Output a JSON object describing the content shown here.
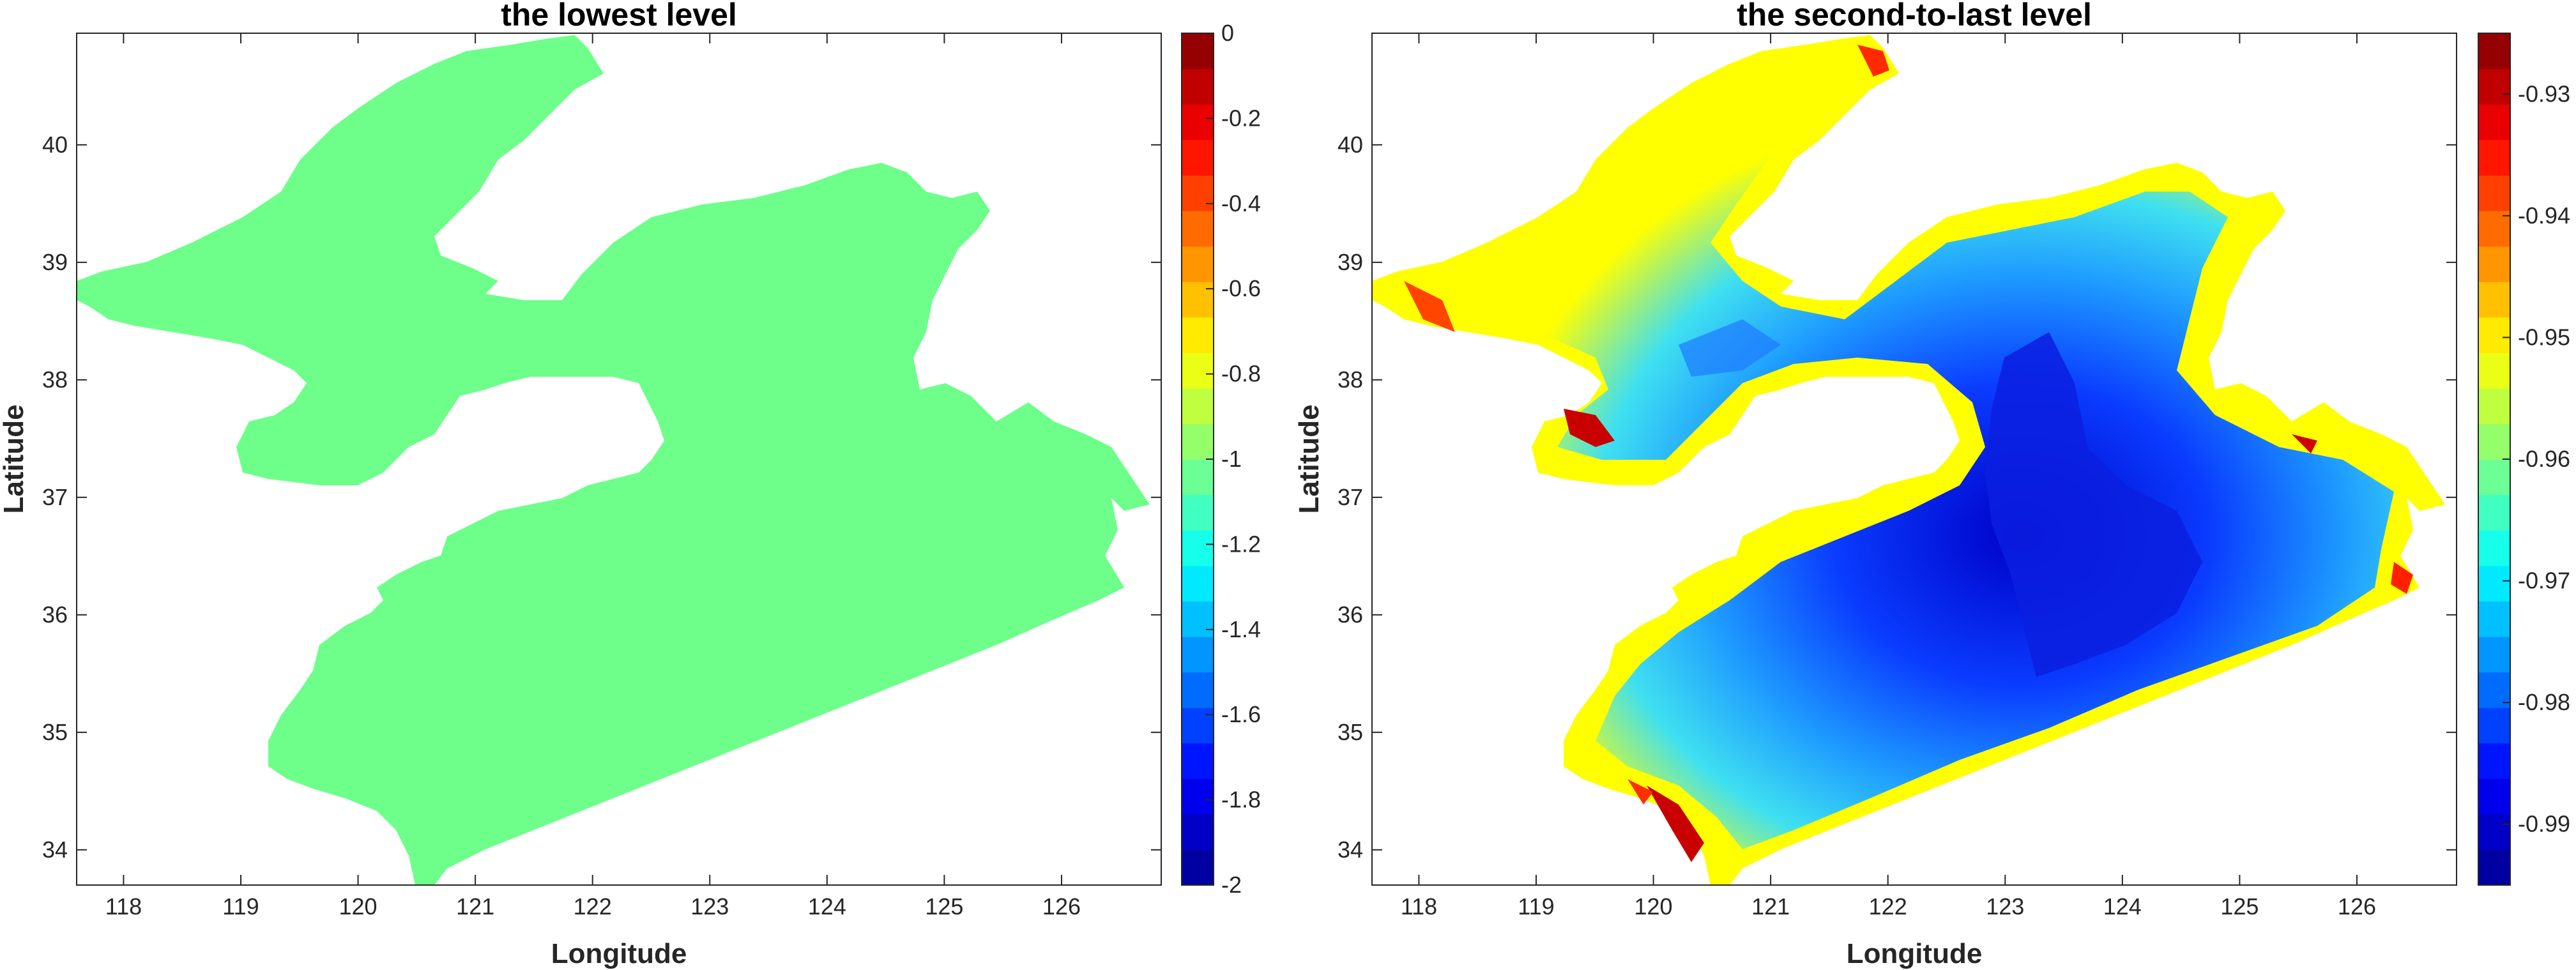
{
  "chart_data": [
    {
      "type": "heatmap",
      "title": "the lowest level",
      "xlabel": "Longitude",
      "ylabel": "Latitude",
      "xlim": [
        117.6,
        126.85
      ],
      "ylim": [
        33.7,
        40.95
      ],
      "xticks": [
        "118",
        "119",
        "120",
        "121",
        "122",
        "123",
        "124",
        "125",
        "126"
      ],
      "yticks": [
        "34",
        "35",
        "36",
        "37",
        "38",
        "39",
        "40"
      ],
      "colorbar": {
        "range": [
          -2,
          0
        ],
        "ticks": [
          "0",
          "-0.2",
          "-0.4",
          "-0.6",
          "-0.8",
          "-1",
          "-1.2",
          "-1.4",
          "-1.6",
          "-1.8",
          "-2"
        ],
        "colormap": "jet"
      },
      "field_value": -1.0,
      "field_color": "#6dff8a",
      "grid": false
    },
    {
      "type": "heatmap",
      "title": "the second-to-last level",
      "xlabel": "Longitude",
      "ylabel": "Latitude",
      "xlim": [
        117.6,
        126.85
      ],
      "ylim": [
        33.7,
        40.95
      ],
      "xticks": [
        "118",
        "119",
        "120",
        "121",
        "122",
        "123",
        "124",
        "125",
        "126"
      ],
      "yticks": [
        "34",
        "35",
        "36",
        "37",
        "38",
        "39",
        "40"
      ],
      "colorbar": {
        "range": [
          -0.995,
          -0.925
        ],
        "ticks": [
          "-0.93",
          "-0.94",
          "-0.95",
          "-0.96",
          "-0.97",
          "-0.98",
          "-0.99"
        ],
        "colormap": "jet"
      },
      "field_pattern": "yellow/red near coastline (about -0.95 to -0.93), decreasing to dark blue (about -0.99) in the deep central basin",
      "grid": false
    }
  ],
  "colors": {
    "jet_stops": [
      "#00008f",
      "#0000ff",
      "#0080ff",
      "#00ffff",
      "#80ff80",
      "#ffff00",
      "#ff8000",
      "#ff0000",
      "#800000"
    ],
    "axis": "#262626"
  }
}
